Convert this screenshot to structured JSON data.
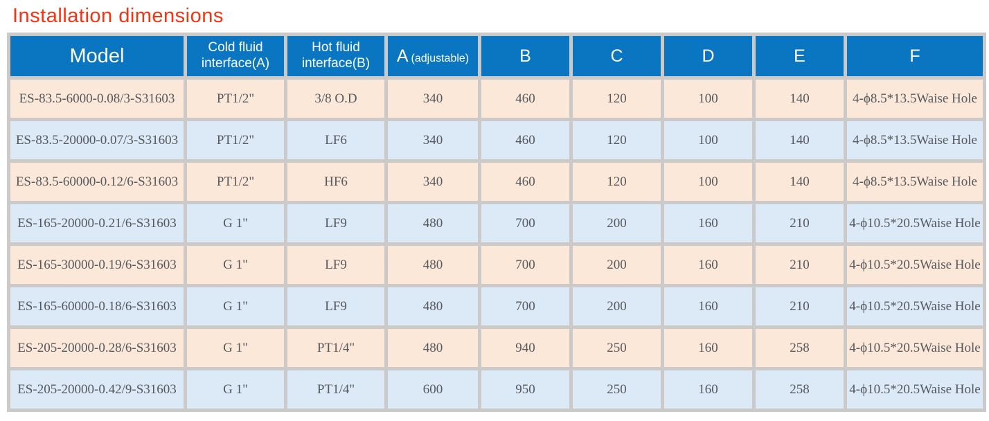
{
  "page": {
    "title": "Installation dimensions"
  },
  "theme": {
    "title_color": "#fb3110",
    "header_bg": "#0a76c1",
    "header_text": "#ffffff",
    "row_odd_bg": "#fce8d8",
    "row_even_bg": "#dbeaf6",
    "grid_color": "#cbcac8",
    "cell_text": "#55585c",
    "page_bg": "#ffffff"
  },
  "table": {
    "headers": [
      {
        "label": "Model"
      },
      {
        "label": "Cold fluid interface(A)"
      },
      {
        "label": "Hot fluid interface(B)"
      },
      {
        "label": "A",
        "sublabel": "(adjustable)"
      },
      {
        "label": "B"
      },
      {
        "label": "C"
      },
      {
        "label": "D"
      },
      {
        "label": "E"
      },
      {
        "label": "F"
      }
    ],
    "rows": [
      [
        "ES-83.5-6000-0.08/3-S31603",
        "PT1/2\"",
        "3/8 O.D",
        "340",
        "460",
        "120",
        "100",
        "140",
        "4-ϕ8.5*13.5Waise Hole"
      ],
      [
        "ES-83.5-20000-0.07/3-S31603",
        "PT1/2\"",
        "LF6",
        "340",
        "460",
        "120",
        "100",
        "140",
        "4-ϕ8.5*13.5Waise Hole"
      ],
      [
        "ES-83.5-60000-0.12/6-S31603",
        "PT1/2\"",
        "HF6",
        "340",
        "460",
        "120",
        "100",
        "140",
        "4-ϕ8.5*13.5Waise Hole"
      ],
      [
        "ES-165-20000-0.21/6-S31603",
        "G 1\"",
        "LF9",
        "480",
        "700",
        "200",
        "160",
        "210",
        "4-ϕ10.5*20.5Waise Hole"
      ],
      [
        "ES-165-30000-0.19/6-S31603",
        "G 1\"",
        "LF9",
        "480",
        "700",
        "200",
        "160",
        "210",
        "4-ϕ10.5*20.5Waise Hole"
      ],
      [
        "ES-165-60000-0.18/6-S31603",
        "G 1\"",
        "LF9",
        "480",
        "700",
        "200",
        "160",
        "210",
        "4-ϕ10.5*20.5Waise Hole"
      ],
      [
        "ES-205-20000-0.28/6-S31603",
        "G 1\"",
        "PT1/4\"",
        "480",
        "940",
        "250",
        "160",
        "258",
        "4-ϕ10.5*20.5Waise Hole"
      ],
      [
        "ES-205-20000-0.42/9-S31603",
        "G 1\"",
        "PT1/4\"",
        "600",
        "950",
        "250",
        "160",
        "258",
        "4-ϕ10.5*20.5Waise Hole"
      ]
    ],
    "cell_names": [
      "model-cell",
      "cold-fluid-interface-cell",
      "hot-fluid-interface-cell",
      "dim-a-cell",
      "dim-b-cell",
      "dim-c-cell",
      "dim-d-cell",
      "dim-e-cell",
      "dim-f-cell"
    ]
  }
}
